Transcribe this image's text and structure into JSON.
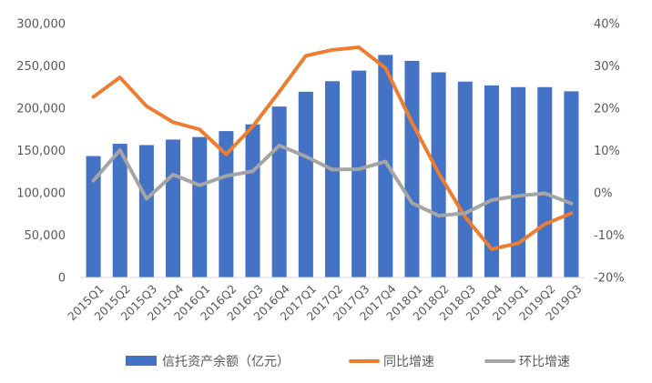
{
  "chart_data": {
    "type": "bar+line",
    "categories": [
      "2015Q1",
      "2015Q2",
      "2015Q3",
      "2015Q4",
      "2016Q1",
      "2016Q2",
      "2016Q3",
      "2016Q4",
      "2017Q1",
      "2017Q2",
      "2017Q3",
      "2017Q4",
      "2018Q1",
      "2018Q2",
      "2018Q3",
      "2018Q4",
      "2019Q1",
      "2019Q2",
      "2019Q3"
    ],
    "left_axis": {
      "ylim": [
        0,
        300000
      ],
      "ticks": [
        "0",
        "50,000",
        "100,000",
        "150,000",
        "200,000",
        "250,000",
        "300,000"
      ]
    },
    "right_axis": {
      "ylim": [
        -20,
        40
      ],
      "ticks": [
        "-20%",
        "-10%",
        "0%",
        "10%",
        "20%",
        "30%",
        "40%"
      ]
    },
    "series": [
      {
        "name": "信托资产余额（亿元）",
        "type": "bar",
        "axis": "left",
        "color": "#4472C4",
        "values": [
          143500,
          158000,
          156500,
          163000,
          166000,
          173000,
          181000,
          202000,
          219500,
          232000,
          244500,
          263000,
          256000,
          242500,
          231500,
          227000,
          225000,
          225000,
          220000
        ]
      },
      {
        "name": "同比增速",
        "type": "line",
        "axis": "right",
        "color": "#ED7D31",
        "values": [
          22.7,
          27.3,
          20.5,
          16.7,
          15.0,
          9.1,
          15.7,
          23.9,
          32.4,
          33.8,
          34.4,
          29.5,
          16.6,
          4.7,
          -5.7,
          -13.3,
          -11.9,
          -7.4,
          -4.8
        ]
      },
      {
        "name": "环比增速",
        "type": "line",
        "axis": "right",
        "color": "#A5A5A5",
        "values": [
          2.9,
          10.1,
          -1.4,
          4.3,
          1.8,
          4.0,
          5.1,
          11.2,
          8.6,
          5.5,
          5.6,
          7.4,
          -2.4,
          -5.4,
          -4.8,
          -1.7,
          -0.7,
          -0.1,
          -2.5
        ]
      }
    ],
    "legend_position": "bottom",
    "grid": false
  }
}
